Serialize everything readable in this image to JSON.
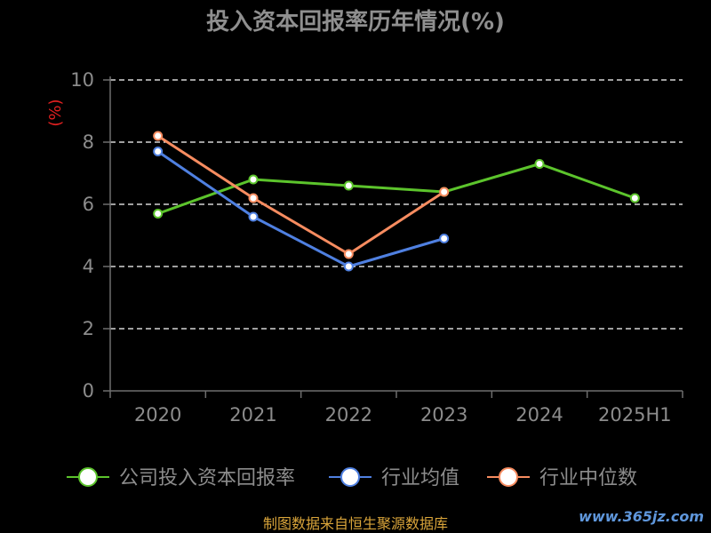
{
  "footer": "制图数据来自恒生聚源数据库",
  "watermark": "www.365jz.com",
  "colors": {
    "background": "#000000",
    "text": "#8c8c8c",
    "ylabel": "#e02020",
    "grid": "#ffffff",
    "footer": "#d9a43a"
  },
  "chart_data": {
    "type": "line",
    "title": "投入资本回报率历年情况(%)",
    "xlabel": "",
    "ylabel": "(%)",
    "categories": [
      "2020",
      "2021",
      "2022",
      "2023",
      "2024",
      "2025H1"
    ],
    "ylim": [
      0,
      10
    ],
    "yticks": [
      0,
      2,
      4,
      6,
      8,
      10
    ],
    "grid": true,
    "grid_style": "dashed",
    "legend": "bottom",
    "series": [
      {
        "name": "公司投入资本回报率",
        "color": "#5cc42c",
        "values": [
          5.7,
          6.8,
          6.6,
          6.4,
          7.3,
          6.2
        ]
      },
      {
        "name": "行业均值",
        "color": "#4f80e1",
        "values": [
          7.7,
          5.6,
          4.0,
          4.9,
          null,
          null
        ]
      },
      {
        "name": "行业中位数",
        "color": "#f78c60",
        "values": [
          8.2,
          6.2,
          4.4,
          6.4,
          null,
          null
        ]
      }
    ]
  }
}
